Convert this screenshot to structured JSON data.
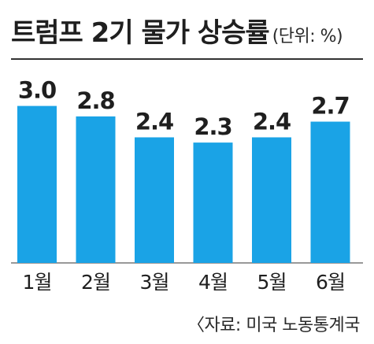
{
  "header": {
    "title": "트럼프 2기 물가 상승률",
    "unit": "(단위: %)"
  },
  "source": "〈자료: 미국 노동통계국",
  "colors": {
    "bar": "#1aa3e6",
    "baseline": "#333333"
  },
  "chart_data": {
    "type": "bar",
    "title": "트럼프 2기 물가 상승률",
    "unit": "%",
    "categories": [
      "1월",
      "2월",
      "3월",
      "4월",
      "5월",
      "6월"
    ],
    "values": [
      3.0,
      2.8,
      2.4,
      2.3,
      2.4,
      2.7
    ],
    "value_labels": [
      "3.0",
      "2.8",
      "2.4",
      "2.3",
      "2.4",
      "2.7"
    ],
    "ylim": [
      0,
      3.4
    ],
    "grid": false,
    "legend": "none"
  }
}
